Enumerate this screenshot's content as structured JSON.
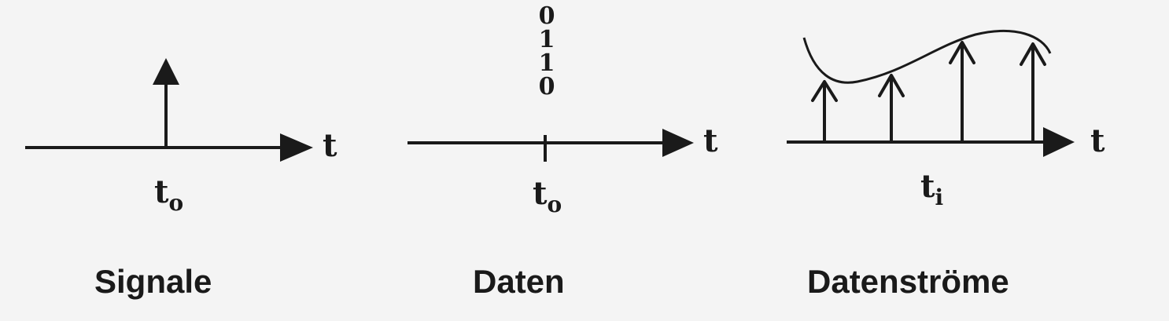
{
  "panels": [
    {
      "caption": "Signale",
      "axis_label": "t",
      "tick_label": {
        "base": "t",
        "sub": "o"
      }
    },
    {
      "caption": "Daten",
      "axis_label": "t",
      "tick_label": {
        "base": "t",
        "sub": "o"
      },
      "bits": [
        "0",
        "1",
        "1",
        "0"
      ]
    },
    {
      "caption": "Datenströme",
      "axis_label": "t",
      "tick_label": {
        "base": "t",
        "sub": "i"
      }
    }
  ],
  "colors": {
    "ink": "#1a1a1a",
    "background": "#f4f4f4"
  }
}
